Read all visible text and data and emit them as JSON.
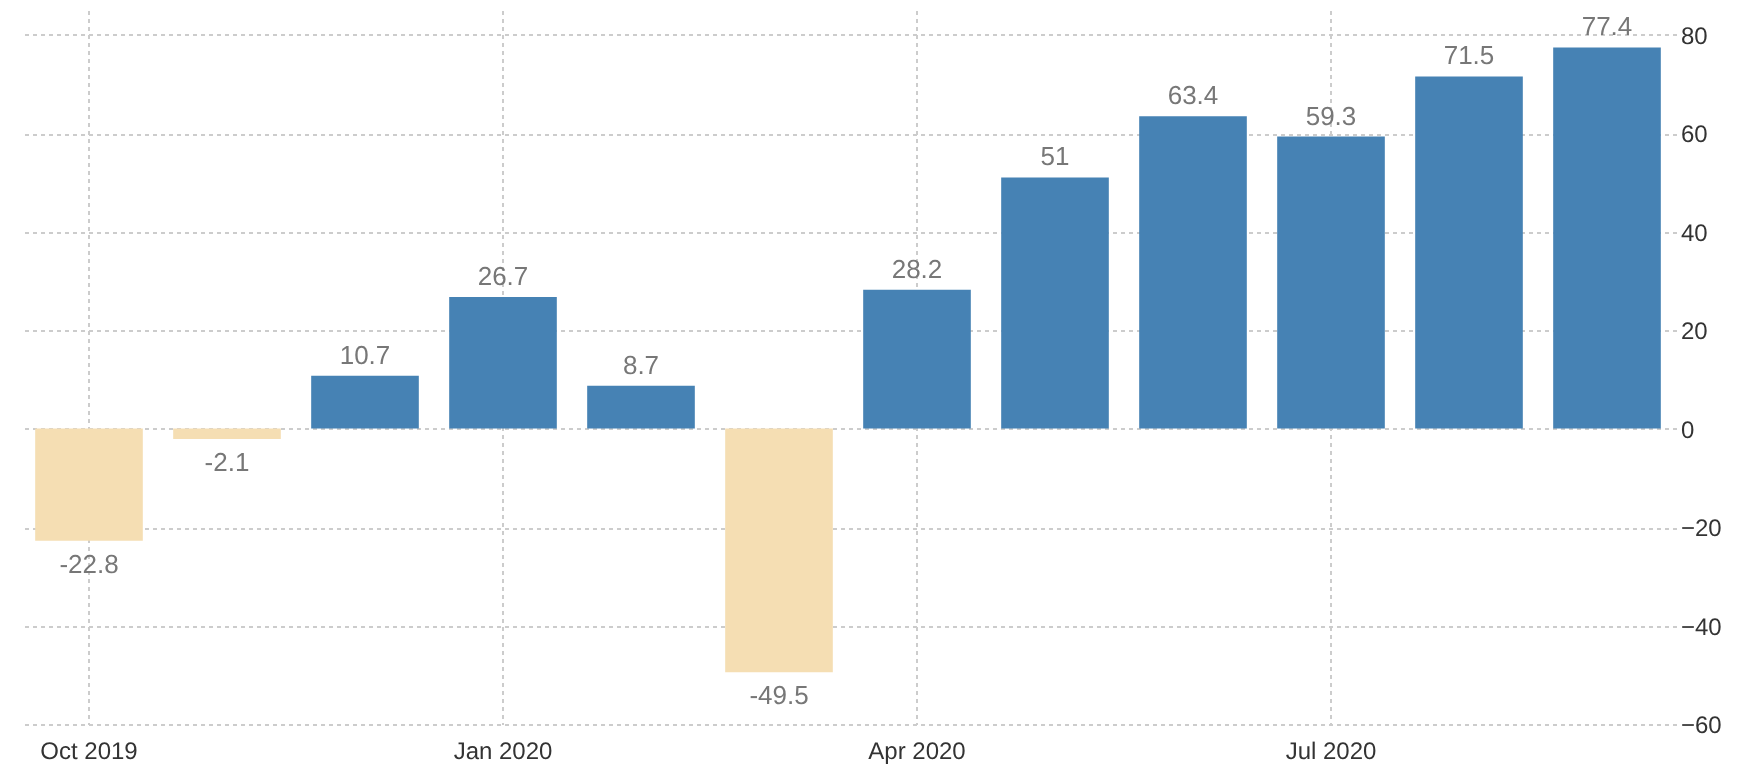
{
  "chart_data": {
    "type": "bar",
    "categories": [
      "Oct 2019",
      null,
      null,
      "Jan 2020",
      null,
      null,
      "Apr 2020",
      null,
      null,
      "Jul 2020",
      null,
      null
    ],
    "values": [
      -22.8,
      -2.1,
      10.7,
      26.7,
      8.7,
      -49.5,
      28.2,
      51,
      63.4,
      59.3,
      71.5,
      77.4
    ],
    "colors": [
      "#f5deb3",
      "#f5deb3",
      "#4682b4",
      "#4682b4",
      "#4682b4",
      "#f5deb3",
      "#4682b4",
      "#4682b4",
      "#4682b4",
      "#4682b4",
      "#4682b4",
      "#4682b4"
    ],
    "ylim": [
      -60,
      85
    ],
    "yticks": [
      -60,
      -40,
      -20,
      0,
      20,
      40,
      60,
      80
    ],
    "grid": true,
    "data_labels": true
  }
}
